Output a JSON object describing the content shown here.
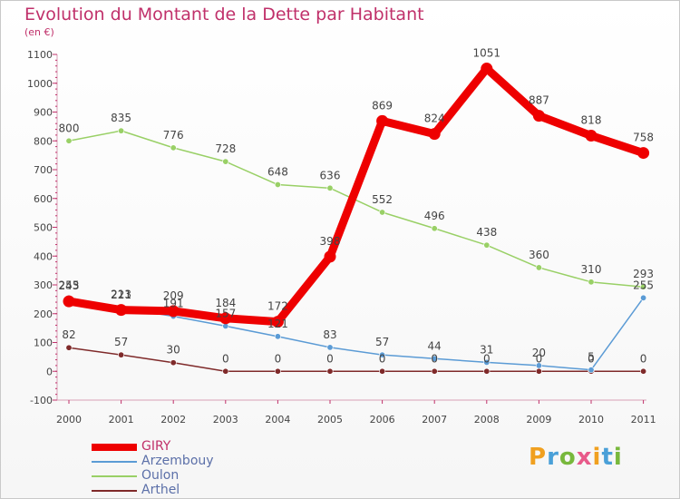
{
  "title": "Evolution du Montant de la Dette par Habitant",
  "subtitle": "(en €)",
  "logo": {
    "text": "Proxiti",
    "colors": [
      "#f0a020",
      "#4aa0d8",
      "#78b83c",
      "#e85a8a",
      "#f0a020",
      "#4aa0d8",
      "#78b83c"
    ]
  },
  "chart_data": {
    "type": "line",
    "title": "Evolution du Montant de la Dette par Habitant",
    "subtitle": "(en €)",
    "x": [
      "2000",
      "2001",
      "2002",
      "2003",
      "2004",
      "2005",
      "2006",
      "2007",
      "2008",
      "2009",
      "2010",
      "2011"
    ],
    "ylim": [
      -100,
      1100
    ],
    "yticks": [
      -100,
      0,
      100,
      200,
      300,
      400,
      500,
      600,
      700,
      800,
      900,
      1000,
      1100
    ],
    "grid": false,
    "legend_position": "bottom-left",
    "series": [
      {
        "name": "GIRY",
        "color": "#ee0000",
        "thick": true,
        "values": [
          243,
          213,
          209,
          184,
          172,
          398,
          869,
          824,
          1051,
          887,
          818,
          758
        ],
        "labels": [
          "243",
          "213",
          "209",
          "184",
          "172",
          "398",
          "869",
          "824",
          "1051",
          "887",
          "818",
          "758"
        ]
      },
      {
        "name": "Arzembouy",
        "color": "#5b9bd5",
        "thick": false,
        "values": [
          255,
          221,
          191,
          157,
          121,
          83,
          57,
          44,
          31,
          20,
          5,
          255
        ],
        "labels": [
          "255",
          "221",
          "191",
          "157",
          "121",
          "83",
          "57",
          "44",
          "31",
          "20",
          "5",
          "255"
        ]
      },
      {
        "name": "Oulon",
        "color": "#99d066",
        "thick": false,
        "values": [
          800,
          835,
          776,
          728,
          648,
          636,
          552,
          496,
          438,
          360,
          310,
          293
        ],
        "labels": [
          "800",
          "835",
          "776",
          "728",
          "648",
          "636",
          "552",
          "496",
          "438",
          "360",
          "310",
          "293"
        ]
      },
      {
        "name": "Arthel",
        "color": "#7f2a2a",
        "thick": false,
        "values": [
          82,
          57,
          30,
          0,
          0,
          0,
          0,
          0,
          0,
          0,
          0,
          0
        ],
        "labels": [
          "82",
          "57",
          "30",
          "0",
          "0",
          "0",
          "0",
          "0",
          "0",
          "0",
          "0",
          "0"
        ]
      }
    ]
  }
}
